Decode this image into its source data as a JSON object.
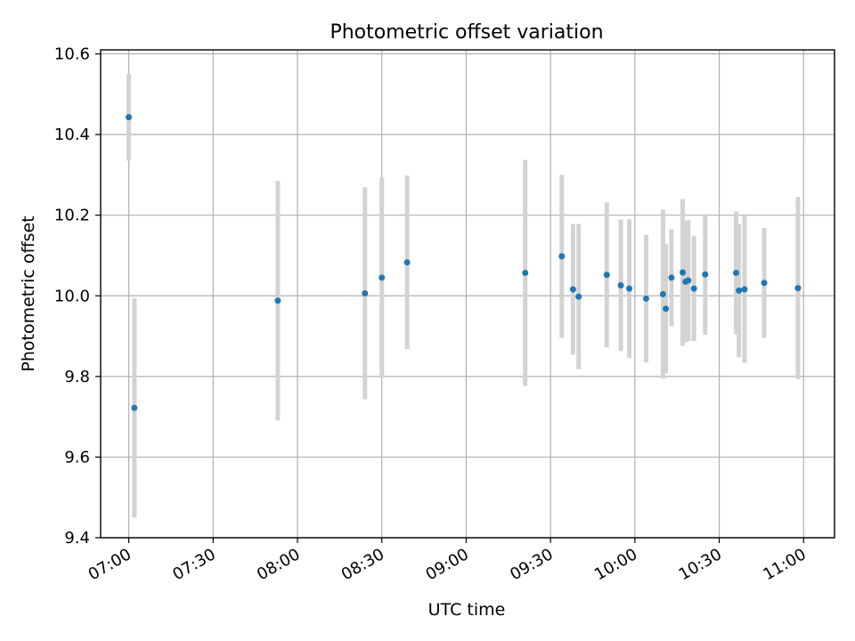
{
  "chart_data": {
    "type": "scatter",
    "title": "Photometric offset variation",
    "xlabel": "UTC time",
    "ylabel": "Photometric offset",
    "x_unit": "time of day (HH:MM)",
    "xlim": [
      "06:50",
      "11:11"
    ],
    "ylim": [
      9.4,
      10.61
    ],
    "x_ticks": [
      "07:00",
      "07:30",
      "08:00",
      "08:30",
      "09:00",
      "09:30",
      "10:00",
      "10:30",
      "11:00"
    ],
    "y_ticks": [
      9.4,
      9.6,
      9.8,
      10.0,
      10.2,
      10.4,
      10.6
    ],
    "y_tick_labels": [
      "9.4",
      "9.6",
      "9.8",
      "10.0",
      "10.2",
      "10.4",
      "10.6"
    ],
    "grid": true,
    "tick_label_rotation": "x labels rotated ~30°",
    "series": [
      {
        "marker_color": "#1f77b4",
        "errorbar_color": "#d3d3d3",
        "points": [
          {
            "t": "07:00",
            "y": 10.443,
            "err": 0.108
          },
          {
            "t": "07:02",
            "y": 9.722,
            "err": 0.272
          },
          {
            "t": "07:53",
            "y": 9.988,
            "err": 0.297
          },
          {
            "t": "08:24",
            "y": 10.006,
            "err": 0.263
          },
          {
            "t": "08:30",
            "y": 10.045,
            "err": 0.248
          },
          {
            "t": "08:39",
            "y": 10.083,
            "err": 0.215
          },
          {
            "t": "09:21",
            "y": 10.057,
            "err": 0.28
          },
          {
            "t": "09:34",
            "y": 10.098,
            "err": 0.202
          },
          {
            "t": "09:38",
            "y": 10.016,
            "err": 0.162
          },
          {
            "t": "09:40",
            "y": 9.998,
            "err": 0.18
          },
          {
            "t": "09:50",
            "y": 10.052,
            "err": 0.18
          },
          {
            "t": "09:55",
            "y": 10.026,
            "err": 0.163
          },
          {
            "t": "09:58",
            "y": 10.018,
            "err": 0.172
          },
          {
            "t": "10:04",
            "y": 9.993,
            "err": 0.158
          },
          {
            "t": "10:10",
            "y": 10.004,
            "err": 0.21
          },
          {
            "t": "10:11",
            "y": 9.968,
            "err": 0.16
          },
          {
            "t": "10:13",
            "y": 10.045,
            "err": 0.12
          },
          {
            "t": "10:17",
            "y": 10.058,
            "err": 0.182
          },
          {
            "t": "10:18",
            "y": 10.035,
            "err": 0.15
          },
          {
            "t": "10:19",
            "y": 10.038,
            "err": 0.15
          },
          {
            "t": "10:21",
            "y": 10.018,
            "err": 0.13
          },
          {
            "t": "10:25",
            "y": 10.053,
            "err": 0.15
          },
          {
            "t": "10:36",
            "y": 10.057,
            "err": 0.152
          },
          {
            "t": "10:37",
            "y": 10.013,
            "err": 0.165
          },
          {
            "t": "10:39",
            "y": 10.016,
            "err": 0.182
          },
          {
            "t": "10:46",
            "y": 10.032,
            "err": 0.136
          },
          {
            "t": "10:58",
            "y": 10.019,
            "err": 0.226
          }
        ]
      }
    ]
  }
}
